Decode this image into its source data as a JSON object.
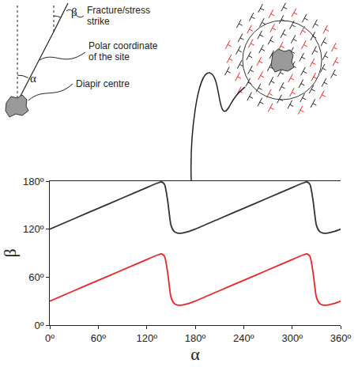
{
  "chart_data": {
    "type": "line",
    "x_label": "α",
    "y_label": "β",
    "annotations": [
      "α",
      "β",
      "Fracture/stress strike",
      "Polar coordinate of the site",
      "Diapir centre"
    ],
    "x": [
      0,
      30,
      60,
      90,
      120,
      132,
      138,
      142,
      146,
      150,
      154,
      158,
      164,
      172,
      180,
      210,
      240,
      270,
      300,
      312,
      318,
      322,
      326,
      330,
      334,
      338,
      344,
      352,
      360
    ],
    "series": [
      {
        "color": "#333333",
        "values": [
          120,
          133,
          146,
          159,
          172,
          177,
          179,
          176,
          155,
          125,
          117,
          115,
          115,
          117,
          120,
          133,
          146,
          159,
          172,
          177,
          179,
          176,
          155,
          125,
          117,
          115,
          115,
          117,
          120
        ]
      },
      {
        "color": "#e8262a",
        "values": [
          30,
          43,
          56,
          69,
          82,
          87,
          89,
          86,
          65,
          35,
          27,
          25,
          25,
          27,
          30,
          43,
          56,
          69,
          82,
          87,
          89,
          86,
          65,
          35,
          27,
          25,
          25,
          27,
          30
        ]
      }
    ],
    "xlim": [
      0,
      360
    ],
    "ylim": [
      0,
      180
    ],
    "xticks": [
      {
        "value": 0,
        "label": "0º"
      },
      {
        "value": 60,
        "label": "60º"
      },
      {
        "value": 120,
        "label": "120º"
      },
      {
        "value": 180,
        "label": "180º"
      },
      {
        "value": 240,
        "label": "240º"
      },
      {
        "value": 300,
        "label": "300º"
      },
      {
        "value": 360,
        "label": "360º"
      }
    ],
    "yticks": [
      {
        "value": 0,
        "label": "0º"
      },
      {
        "value": 60,
        "label": "60º"
      },
      {
        "value": 120,
        "label": "120º"
      },
      {
        "value": 180,
        "label": "180º"
      }
    ],
    "grid": false
  }
}
